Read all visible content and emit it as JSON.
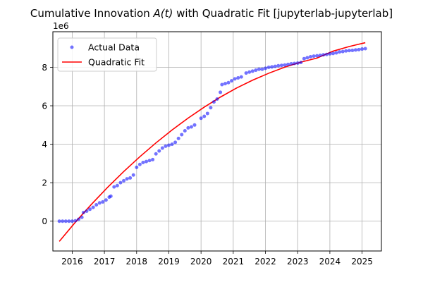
{
  "chart_data": {
    "type": "scatter",
    "title_prefix": "Cumulative Innovation ",
    "title_math": "A(t)",
    "title_suffix": " with Quadratic Fit [jupyterlab-jupyterlab]",
    "xlabel": "",
    "ylabel": "",
    "y_offset_label": "1e6",
    "xlim": [
      2015.4,
      2025.6
    ],
    "ylim": [
      -1.55,
      9.85
    ],
    "x_ticks": [
      2016,
      2017,
      2018,
      2019,
      2020,
      2021,
      2022,
      2023,
      2024,
      2025
    ],
    "y_ticks": [
      0,
      2,
      4,
      6,
      8
    ],
    "grid": true,
    "legend_position": "upper-left",
    "y_unit_multiplier": 1000000,
    "series": [
      {
        "name": "Actual Data",
        "kind": "scatter",
        "color": "#0000ff",
        "points": [
          [
            2015.6,
            0.0
          ],
          [
            2015.7,
            0.0
          ],
          [
            2015.8,
            0.0
          ],
          [
            2015.9,
            0.0
          ],
          [
            2016.0,
            0.0
          ],
          [
            2016.1,
            0.02
          ],
          [
            2016.2,
            0.1
          ],
          [
            2016.3,
            0.2
          ],
          [
            2016.35,
            0.45
          ],
          [
            2016.45,
            0.52
          ],
          [
            2016.55,
            0.62
          ],
          [
            2016.65,
            0.72
          ],
          [
            2016.75,
            0.85
          ],
          [
            2016.85,
            0.95
          ],
          [
            2016.95,
            1.0
          ],
          [
            2017.05,
            1.1
          ],
          [
            2017.15,
            1.25
          ],
          [
            2017.2,
            1.3
          ],
          [
            2017.3,
            1.78
          ],
          [
            2017.4,
            1.85
          ],
          [
            2017.5,
            2.0
          ],
          [
            2017.6,
            2.1
          ],
          [
            2017.7,
            2.2
          ],
          [
            2017.8,
            2.25
          ],
          [
            2017.9,
            2.4
          ],
          [
            2018.0,
            2.8
          ],
          [
            2018.1,
            2.95
          ],
          [
            2018.2,
            3.05
          ],
          [
            2018.3,
            3.1
          ],
          [
            2018.4,
            3.15
          ],
          [
            2018.5,
            3.2
          ],
          [
            2018.6,
            3.5
          ],
          [
            2018.7,
            3.65
          ],
          [
            2018.8,
            3.8
          ],
          [
            2018.9,
            3.9
          ],
          [
            2019.0,
            3.95
          ],
          [
            2019.1,
            4.0
          ],
          [
            2019.2,
            4.1
          ],
          [
            2019.3,
            4.3
          ],
          [
            2019.4,
            4.5
          ],
          [
            2019.5,
            4.7
          ],
          [
            2019.6,
            4.85
          ],
          [
            2019.7,
            4.9
          ],
          [
            2019.8,
            5.0
          ],
          [
            2020.0,
            5.35
          ],
          [
            2020.1,
            5.45
          ],
          [
            2020.2,
            5.6
          ],
          [
            2020.3,
            5.9
          ],
          [
            2020.4,
            6.2
          ],
          [
            2020.5,
            6.35
          ],
          [
            2020.6,
            6.7
          ],
          [
            2020.65,
            7.1
          ],
          [
            2020.75,
            7.15
          ],
          [
            2020.85,
            7.2
          ],
          [
            2020.95,
            7.3
          ],
          [
            2021.05,
            7.4
          ],
          [
            2021.15,
            7.45
          ],
          [
            2021.25,
            7.5
          ],
          [
            2021.4,
            7.7
          ],
          [
            2021.5,
            7.75
          ],
          [
            2021.6,
            7.8
          ],
          [
            2021.7,
            7.85
          ],
          [
            2021.8,
            7.9
          ],
          [
            2021.9,
            7.9
          ],
          [
            2022.0,
            7.95
          ],
          [
            2022.1,
            8.0
          ],
          [
            2022.2,
            8.02
          ],
          [
            2022.3,
            8.05
          ],
          [
            2022.4,
            8.08
          ],
          [
            2022.5,
            8.1
          ],
          [
            2022.6,
            8.12
          ],
          [
            2022.7,
            8.15
          ],
          [
            2022.8,
            8.18
          ],
          [
            2022.9,
            8.2
          ],
          [
            2023.0,
            8.22
          ],
          [
            2023.1,
            8.25
          ],
          [
            2023.2,
            8.45
          ],
          [
            2023.3,
            8.5
          ],
          [
            2023.4,
            8.55
          ],
          [
            2023.5,
            8.58
          ],
          [
            2023.6,
            8.6
          ],
          [
            2023.7,
            8.62
          ],
          [
            2023.8,
            8.65
          ],
          [
            2023.9,
            8.67
          ],
          [
            2024.0,
            8.7
          ],
          [
            2024.1,
            8.72
          ],
          [
            2024.2,
            8.75
          ],
          [
            2024.3,
            8.8
          ],
          [
            2024.4,
            8.82
          ],
          [
            2024.5,
            8.85
          ],
          [
            2024.6,
            8.87
          ],
          [
            2024.7,
            8.88
          ],
          [
            2024.8,
            8.9
          ],
          [
            2024.9,
            8.92
          ],
          [
            2025.0,
            8.95
          ],
          [
            2025.1,
            8.97
          ]
        ]
      },
      {
        "name": "Quadratic Fit",
        "kind": "line",
        "color": "#ff0000",
        "x": [
          2015.6,
          2016.1,
          2016.6,
          2017.1,
          2017.6,
          2018.1,
          2018.6,
          2019.1,
          2019.6,
          2020.1,
          2020.6,
          2021.1,
          2021.6,
          2022.1,
          2022.6,
          2023.1,
          2023.6,
          2024.1,
          2024.6,
          2025.1
        ],
        "values": [
          -1.05,
          -0.05,
          0.88,
          1.76,
          2.58,
          3.35,
          4.07,
          4.74,
          5.36,
          5.93,
          6.45,
          6.92,
          7.33,
          7.69,
          8.01,
          8.27,
          8.48,
          8.84,
          9.08,
          9.28
        ]
      }
    ]
  }
}
